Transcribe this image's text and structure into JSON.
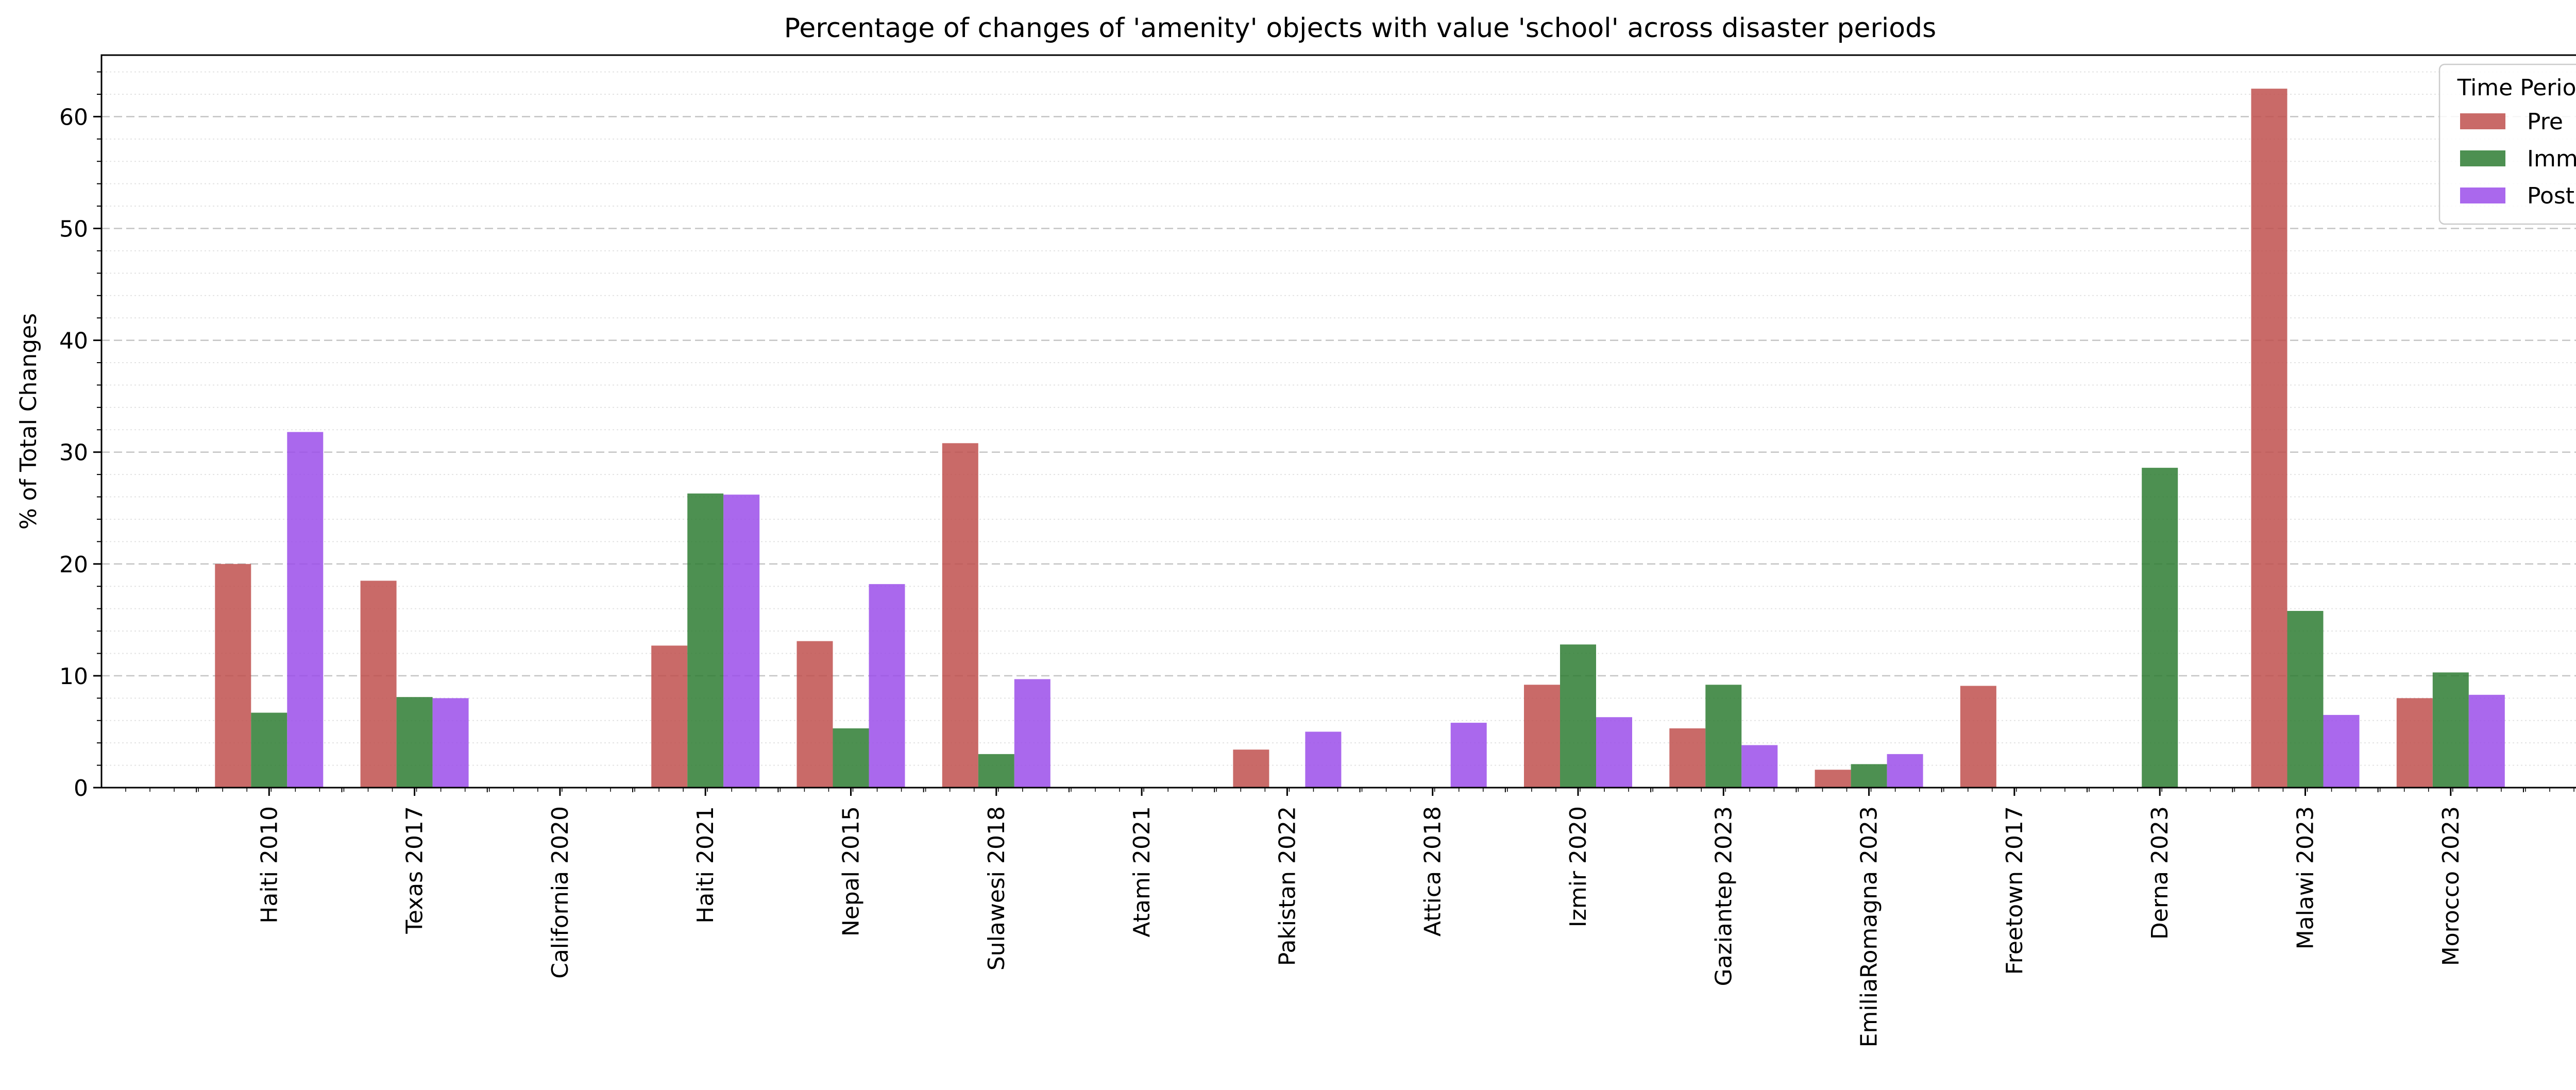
{
  "chart_data": {
    "type": "bar",
    "title": "Percentage of changes of 'amenity' objects with value 'school' across disaster periods",
    "xlabel": "",
    "ylabel": "% of Total Changes",
    "ylim": [
      0,
      65.5
    ],
    "yticks": [
      0,
      10,
      20,
      30,
      40,
      50,
      60
    ],
    "grid": true,
    "legend": {
      "title": "Time Period",
      "placement": "top-right"
    },
    "categories": [
      "Haiti 2010",
      "Texas 2017",
      "California 2020",
      "Haiti 2021",
      "Nepal 2015",
      "Sulawesi 2018",
      "Atami 2021",
      "Pakistan 2022",
      "Attica 2018",
      "Izmir 2020",
      "Gaziantep 2023",
      "EmiliaRomagna 2023",
      "Freetown 2017",
      "Derna 2023",
      "Malawi 2023",
      "Morocco 2023"
    ],
    "series": [
      {
        "name": "Pre",
        "color": "#c0504d",
        "values": [
          20.0,
          18.5,
          0,
          12.7,
          13.1,
          30.8,
          0,
          3.4,
          0,
          9.2,
          5.3,
          1.6,
          9.1,
          0,
          62.5,
          8.0
        ]
      },
      {
        "name": "Imm",
        "color": "#2e7d32",
        "values": [
          6.7,
          8.1,
          0,
          26.3,
          5.3,
          3.0,
          0,
          0,
          0,
          12.8,
          9.2,
          2.1,
          0,
          28.6,
          15.8,
          10.3
        ]
      },
      {
        "name": "Post",
        "color": "#9b4dea",
        "values": [
          31.8,
          8.0,
          0,
          26.2,
          18.2,
          9.7,
          0,
          5.0,
          5.8,
          6.3,
          3.8,
          3.0,
          0,
          0,
          6.5,
          8.3
        ]
      }
    ]
  }
}
